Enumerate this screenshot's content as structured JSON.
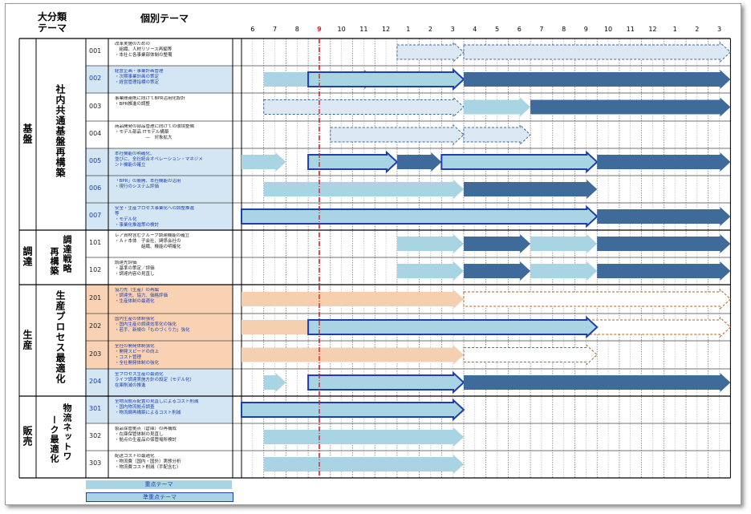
{
  "headers": {
    "category": "大分類\nテーマ",
    "theme": "個別テーマ"
  },
  "months": [
    "6",
    "7",
    "8",
    "9",
    "10",
    "11",
    "12",
    "1",
    "2",
    "3",
    "4",
    "5",
    "6",
    "7",
    "8",
    "9",
    "10",
    "11",
    "12",
    "1",
    "2",
    "3"
  ],
  "current_month_index": 3,
  "categories": [
    {
      "label": "基盤",
      "sub": "社内共通基盤再構築"
    },
    {
      "label": "調達",
      "sub": "調達戦略再構築"
    },
    {
      "label": "生産",
      "sub": "生産プロセス最適化"
    },
    {
      "label": "販売",
      "sub": "物流ネットワーク最適化"
    }
  ],
  "rows": [
    {
      "num": "001",
      "lines": [
        "改革実施のための",
        "　組織、人材リソース再編等",
        "・本社と各事業部体制の整備"
      ],
      "style": "white"
    },
    {
      "num": "002",
      "lines": [
        "経営企画・事業計画管理",
        "・次期事業計画の策定",
        "・経営管理指標の策定"
      ],
      "style": "blue"
    },
    {
      "num": "003",
      "lines": [
        "事業間連携に向けてBPR活用化設計",
        "・BPR推進の調整"
      ],
      "style": "white"
    },
    {
      "num": "004",
      "lines": [
        "商品開発の部品管理に向けての環境整備",
        "・モデル部品 ITモデル構築",
        "　　　　　　　―　対象拡大"
      ],
      "style": "white"
    },
    {
      "num": "005",
      "lines": [
        "本社機能の明確化、",
        "並びに、全社統合オペレーション・マネジメ",
        "ント機能の確立"
      ],
      "style": "blue"
    },
    {
      "num": "006",
      "lines": [
        "「BPR」の展開、本社機能の活用",
        "・現行のシステム評価"
      ],
      "style": "blue"
    },
    {
      "num": "007",
      "lines": [
        "安全・生産プロセス事業化への調整推進",
        "等",
        "・モデル化",
        "・事業化推進策の検討"
      ],
      "style": "blue"
    },
    {
      "num": "101",
      "lines": [
        "レア資材含むグループ調達機能の確立",
        "・Ａｒ本体　子会社、関係会社の",
        "　　　　　　組織、機能の明確化"
      ],
      "style": "white"
    },
    {
      "num": "102",
      "lines": [
        "調達先評価",
        "・基準の策定／評価",
        "・調達内容の見直し"
      ],
      "style": "white"
    },
    {
      "num": "201",
      "lines": [
        "協力先（生産）の再編",
        "・調達先、協力、価格評価",
        "・生産体制の最適化"
      ],
      "style": "orange"
    },
    {
      "num": "202",
      "lines": [
        "国内生産の体制強化",
        "・国内生産の調達効率化の強化",
        "・若手、新規の「ものづくり力」強化"
      ],
      "style": "orange"
    },
    {
      "num": "203",
      "lines": [
        "全社の開発体制強化",
        "・開発スピードの向上",
        "・コスト管理",
        "・全社開発体制の強化"
      ],
      "style": "orange"
    },
    {
      "num": "204",
      "lines": [
        "全プロセス生産の最適化",
        "ライフ調達実施方針の設定（モデル化）",
        "在庫削減の推進"
      ],
      "style": "blue"
    },
    {
      "num": "301",
      "lines": [
        "全物流拠点配置の見直しによるコスト削減",
        "・国内物流拠点調査",
        "・物流網再構築によるコスト削減"
      ],
      "style": "blue"
    },
    {
      "num": "302",
      "lines": [
        "製品保管拠点（倉庫）の再構成",
        "・在庫保管体制の見直し",
        "・拠点の生産品の保管場所検討"
      ],
      "style": "white"
    },
    {
      "num": "303",
      "lines": [
        "配送コストの最適化",
        "・物流費（国内・国外）実態分析",
        "・物流費コスト削減（手配含む）"
      ],
      "style": "white"
    }
  ],
  "legend": {
    "priority": "重点テーマ",
    "semi_priority": "準重点テーマ"
  },
  "colors": {
    "light_blue": "#a8d4e4",
    "dark_blue": "#3f6b9a",
    "navy_outline": "#1f3ea8",
    "pale_blue": "#dce8f4",
    "peach": "#f4cfb0",
    "orange_outline": "#b0651e",
    "row_blue": "#d4e6f3",
    "row_orange": "#f9d2b3",
    "current_line": "#d8242c"
  }
}
